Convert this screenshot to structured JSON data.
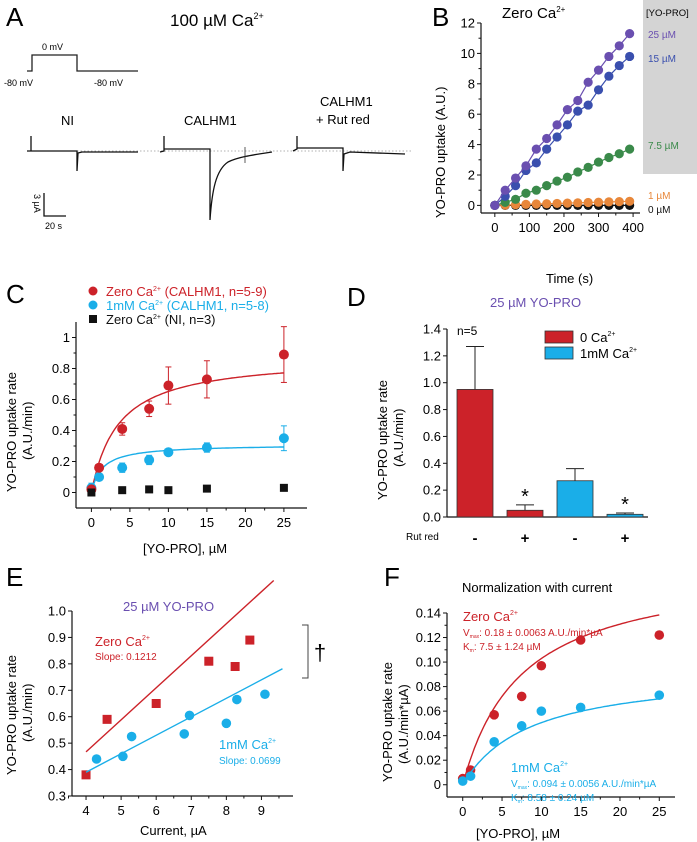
{
  "figure": {
    "panels": [
      "A",
      "B",
      "C",
      "D",
      "E",
      "F"
    ]
  },
  "panelA": {
    "letter": "A",
    "title": "100 µM Ca",
    "title_sup": "2+",
    "protocol": {
      "step_label": "0 mV",
      "hold_left": "-80 mV",
      "hold_right": "-80 mV"
    },
    "traces": [
      {
        "label": "NI"
      },
      {
        "label": "CALHM1"
      },
      {
        "label_line1": "CALHM1",
        "label_line2": "+ Rut red"
      }
    ],
    "scale_bar": {
      "y_label": "3 µA",
      "x_label": "20 s"
    }
  },
  "chart_data": [
    {
      "panel": "B",
      "type": "line",
      "title": "Zero Ca",
      "title_sup": "2+",
      "xlabel": "Time (s)",
      "ylabel": "YO-PRO uptake (A.U.)",
      "xlim": [
        -40,
        420
      ],
      "ylim": [
        -0.5,
        12
      ],
      "xticks": [
        0,
        100,
        200,
        300,
        400
      ],
      "yticks": [
        0,
        2,
        4,
        6,
        8,
        10,
        12
      ],
      "legend_title": "[YO-PRO]",
      "x": [
        0,
        30,
        60,
        90,
        120,
        150,
        180,
        210,
        240,
        270,
        300,
        330,
        360,
        390
      ],
      "series": [
        {
          "name": "25 µM",
          "color": "#6a4fb0",
          "values": [
            0,
            1.0,
            1.8,
            2.6,
            3.7,
            4.4,
            5.3,
            6.3,
            6.9,
            8.1,
            8.9,
            9.8,
            10.5,
            11.3
          ]
        },
        {
          "name": "15 µM",
          "color": "#3a4fae",
          "values": [
            0,
            0.6,
            1.3,
            2.3,
            2.8,
            3.7,
            4.5,
            5.3,
            6.2,
            6.6,
            7.6,
            8.5,
            9.2,
            9.8
          ]
        },
        {
          "name": "7.5 µM",
          "color": "#3a8a4a",
          "values": [
            0,
            0.2,
            0.4,
            0.8,
            1.0,
            1.3,
            1.6,
            1.85,
            2.2,
            2.5,
            2.85,
            3.15,
            3.4,
            3.7
          ]
        },
        {
          "name": "1 µM",
          "color": "#e8873a",
          "values": [
            0,
            0.02,
            0.05,
            0.07,
            0.09,
            0.11,
            0.13,
            0.15,
            0.17,
            0.19,
            0.21,
            0.23,
            0.25,
            0.27
          ]
        },
        {
          "name": "0 µM",
          "color": "#111111",
          "values": [
            0,
            0,
            0,
            0,
            0,
            0,
            0,
            0,
            0,
            0,
            0,
            0,
            0,
            0
          ]
        }
      ]
    },
    {
      "panel": "C",
      "type": "scatter",
      "xlabel": "[YO-PRO], µM",
      "ylabel_line1": "YO-PRO uptake rate",
      "ylabel_line2": "(A.U./min)",
      "xlim": [
        -2,
        28
      ],
      "ylim": [
        -0.1,
        1.1
      ],
      "xticks": [
        0,
        5,
        10,
        15,
        20,
        25
      ],
      "yticks": [
        0,
        0.2,
        0.4,
        0.6,
        0.8,
        1
      ],
      "ytick_labels": [
        "0",
        "0.2",
        "0.4",
        "0.6",
        "0.8",
        "1"
      ],
      "x": [
        0,
        1,
        4,
        7.5,
        10,
        15,
        25
      ],
      "series": [
        {
          "name": "Zero Ca2+ (CALHM1, n=5-9)",
          "legend_main": "Zero Ca",
          "legend_sup": "2+",
          "legend_rest": " (CALHM1, n=5-9)",
          "color": "#cc2229",
          "marker": "circle",
          "values": [
            0.02,
            0.16,
            0.41,
            0.54,
            0.69,
            0.73,
            0.89
          ],
          "errors": [
            0.02,
            0.02,
            0.04,
            0.05,
            0.12,
            0.12,
            0.18
          ],
          "fit": {
            "vmax": 0.88,
            "km": 3.5
          }
        },
        {
          "name": "1mM Ca2+ (CALHM1, n=5-8)",
          "legend_main": "1mM Ca",
          "legend_sup": "2+",
          "legend_rest": " (CALHM1, n=5-8)",
          "color": "#1aaee8",
          "marker": "circle",
          "values": [
            0.03,
            0.1,
            0.16,
            0.21,
            0.26,
            0.29,
            0.35
          ],
          "errors": [
            0.03,
            0.02,
            0.03,
            0.03,
            0.02,
            0.03,
            0.08
          ],
          "fit": {
            "vmax": 0.31,
            "km": 1.4
          }
        },
        {
          "name": "Zero Ca2+ (NI, n=3)",
          "legend_main": "Zero Ca",
          "legend_sup": "2+",
          "legend_rest": " (NI, n=3)",
          "color": "#111111",
          "marker": "square",
          "values": [
            0,
            0.015,
            0.02,
            0.015,
            0.025,
            0.03
          ],
          "x_override": [
            0,
            4,
            7.5,
            10,
            15,
            25
          ]
        }
      ]
    },
    {
      "panel": "D",
      "type": "bar",
      "title": "25 µM YO-PRO",
      "title_color": "#6a4fb0",
      "ylabel_line1": "YO-PRO uptake rate",
      "ylabel_line2": "(A.U./min)",
      "ylim": [
        0,
        1.4
      ],
      "yticks": [
        0,
        0.2,
        0.4,
        0.6,
        0.8,
        1.0,
        1.2,
        1.4
      ],
      "ytick_labels": [
        "0.0",
        "0.2",
        "0.4",
        "0.6",
        "0.8",
        "1.0",
        "1.2",
        "1.4"
      ],
      "row_label": "Rut red",
      "categories": [
        "-",
        "+",
        "-",
        "+"
      ],
      "values": [
        0.95,
        0.05,
        0.27,
        0.02
      ],
      "errors": [
        0.32,
        0.04,
        0.09,
        0.01
      ],
      "colors": [
        "#cc2229",
        "#cc2229",
        "#1aaee8",
        "#1aaee8"
      ],
      "significance": [
        "",
        "*",
        "",
        "*"
      ],
      "annotation": "n=5",
      "legend": [
        {
          "label": "0 Ca",
          "sup": "2+",
          "color": "#cc2229"
        },
        {
          "label": "1mM Ca",
          "sup": "2+",
          "color": "#1aaee8"
        }
      ]
    },
    {
      "panel": "E",
      "type": "scatter",
      "title": "25 µM YO-PRO",
      "title_color": "#6a4fb0",
      "xlabel": "Current, µA",
      "ylabel_line1": "YO-PRO uptake rate",
      "ylabel_line2": "(A.U./min)",
      "xlim": [
        3.6,
        9.9
      ],
      "ylim": [
        0.3,
        1.0
      ],
      "xticks": [
        4,
        5,
        6,
        7,
        8,
        9
      ],
      "yticks": [
        0.3,
        0.4,
        0.5,
        0.6,
        0.7,
        0.8,
        0.9,
        1.0
      ],
      "significance_mark": "†",
      "series": [
        {
          "name": "Zero Ca2+",
          "label_main": "Zero Ca",
          "label_sup": "2+",
          "slope_label": "Slope: 0.1212",
          "color": "#cc2229",
          "marker": "square",
          "x": [
            4.0,
            4.6,
            6.0,
            7.5,
            8.25,
            8.67
          ],
          "y": [
            0.38,
            0.59,
            0.65,
            0.81,
            0.79,
            0.89
          ],
          "fit": {
            "slope": 0.1212,
            "x0": 4.0,
            "y0": 0.467,
            "x1": 9.35
          }
        },
        {
          "name": "1mM Ca2+",
          "label_main": "1mM Ca",
          "label_sup": "2+",
          "slope_label": "Slope: 0.0699",
          "color": "#1aaee8",
          "marker": "circle",
          "x": [
            4.3,
            5.05,
            5.3,
            6.8,
            6.95,
            8.0,
            8.3,
            9.1
          ],
          "y": [
            0.44,
            0.45,
            0.525,
            0.535,
            0.605,
            0.575,
            0.665,
            0.685
          ],
          "fit": {
            "slope": 0.0699,
            "x0": 4.0,
            "y0": 0.39,
            "x1": 9.6
          }
        }
      ]
    },
    {
      "panel": "F",
      "type": "scatter",
      "title": "Normalization with current",
      "xlabel": "[YO-PRO], µM",
      "ylabel_line1": "YO-PRO uptake rate",
      "ylabel_line2": "(A.U./min*µA)",
      "xlim": [
        -2,
        27
      ],
      "ylim": [
        -0.01,
        0.14
      ],
      "xticks": [
        0,
        5,
        10,
        15,
        20,
        25
      ],
      "yticks": [
        0,
        0.02,
        0.04,
        0.06,
        0.08,
        0.1,
        0.12,
        0.14
      ],
      "ytick_labels": [
        "0",
        "0.02",
        "0.04",
        "0.06",
        "0.08",
        "0.10",
        "0.12",
        "0.14"
      ],
      "x": [
        0,
        1,
        4,
        7.5,
        10,
        15,
        25
      ],
      "series": [
        {
          "name": "Zero Ca2+",
          "label_main": "Zero Ca",
          "label_sup": "2+",
          "color": "#cc2229",
          "vmax_label": ": 0.18 ± 0.0063 A.U./min*µA",
          "km_label": ": 7.5 ± 1.24 µM",
          "values": [
            0.005,
            0.012,
            0.057,
            0.072,
            0.097,
            0.118,
            0.122
          ],
          "fit": {
            "vmax": 0.18,
            "km": 7.5
          }
        },
        {
          "name": "1mM Ca2+",
          "label_main": "1mM Ca",
          "label_sup": "2+",
          "color": "#1aaee8",
          "vmax_label": ": 0.094 ± 0.0056 A.U./min*µA",
          "km_label": ": 8.58 ± 0.24 µM",
          "values": [
            0.003,
            0.007,
            0.035,
            0.048,
            0.06,
            0.063,
            0.073
          ],
          "fit": {
            "vmax": 0.094,
            "km": 8.58
          }
        }
      ],
      "vmax_sym": "V",
      "vmax_sub": "max",
      "km_sym": "K",
      "km_sub": "m"
    }
  ]
}
